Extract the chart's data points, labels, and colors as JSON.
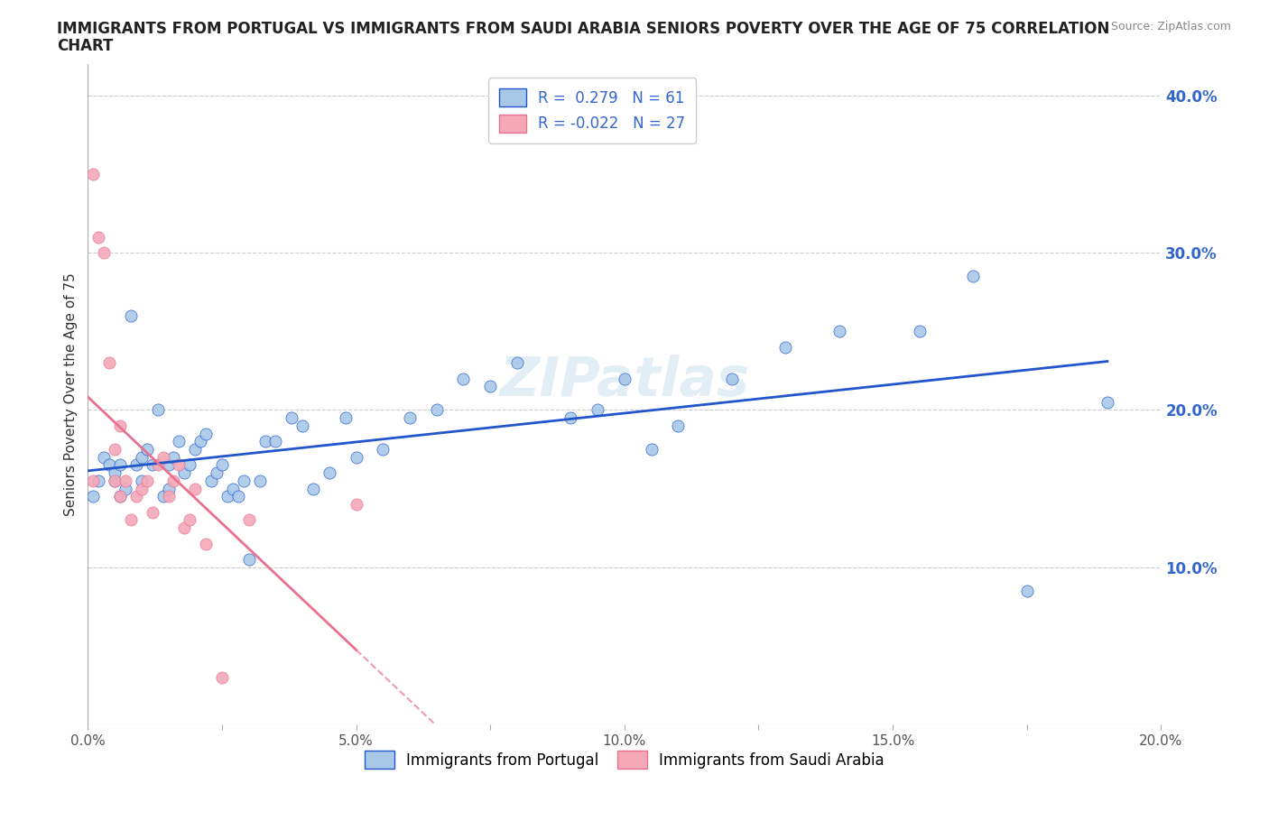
{
  "title_line1": "IMMIGRANTS FROM PORTUGAL VS IMMIGRANTS FROM SAUDI ARABIA SENIORS POVERTY OVER THE AGE OF 75 CORRELATION",
  "title_line2": "CHART",
  "source_text": "Source: ZipAtlas.com",
  "ylabel": "Seniors Poverty Over the Age of 75",
  "xlim": [
    0.0,
    0.2
  ],
  "ylim": [
    0.0,
    0.42
  ],
  "xtick_labels": [
    "0.0%",
    "",
    "5.0%",
    "",
    "10.0%",
    "",
    "15.0%",
    "",
    "20.0%"
  ],
  "xtick_vals": [
    0.0,
    0.025,
    0.05,
    0.075,
    0.1,
    0.125,
    0.15,
    0.175,
    0.2
  ],
  "ytick_labels": [
    "10.0%",
    "20.0%",
    "30.0%",
    "40.0%"
  ],
  "ytick_vals": [
    0.1,
    0.2,
    0.3,
    0.4
  ],
  "r_portugal": 0.279,
  "n_portugal": 61,
  "r_saudi": -0.022,
  "n_saudi": 27,
  "color_portugal": "#a8c8e8",
  "color_saudi": "#f4a8b8",
  "trendline_portugal_color": "#2255cc",
  "trendline_saudi_color": "#e87090",
  "watermark": "ZIPatlas",
  "portugal_x": [
    0.001,
    0.002,
    0.003,
    0.004,
    0.005,
    0.005,
    0.006,
    0.006,
    0.007,
    0.008,
    0.009,
    0.01,
    0.01,
    0.011,
    0.012,
    0.013,
    0.014,
    0.015,
    0.015,
    0.016,
    0.017,
    0.018,
    0.019,
    0.02,
    0.021,
    0.022,
    0.023,
    0.024,
    0.025,
    0.026,
    0.027,
    0.028,
    0.029,
    0.03,
    0.032,
    0.033,
    0.035,
    0.038,
    0.04,
    0.042,
    0.045,
    0.048,
    0.05,
    0.055,
    0.06,
    0.065,
    0.07,
    0.075,
    0.08,
    0.09,
    0.095,
    0.1,
    0.105,
    0.11,
    0.12,
    0.13,
    0.14,
    0.155,
    0.165,
    0.175,
    0.19
  ],
  "portugal_y": [
    0.145,
    0.155,
    0.17,
    0.165,
    0.155,
    0.16,
    0.165,
    0.145,
    0.15,
    0.26,
    0.165,
    0.17,
    0.155,
    0.175,
    0.165,
    0.2,
    0.145,
    0.15,
    0.165,
    0.17,
    0.18,
    0.16,
    0.165,
    0.175,
    0.18,
    0.185,
    0.155,
    0.16,
    0.165,
    0.145,
    0.15,
    0.145,
    0.155,
    0.105,
    0.155,
    0.18,
    0.18,
    0.195,
    0.19,
    0.15,
    0.16,
    0.195,
    0.17,
    0.175,
    0.195,
    0.2,
    0.22,
    0.215,
    0.23,
    0.195,
    0.2,
    0.22,
    0.175,
    0.19,
    0.22,
    0.24,
    0.25,
    0.25,
    0.285,
    0.085,
    0.205
  ],
  "saudi_x": [
    0.001,
    0.001,
    0.002,
    0.003,
    0.004,
    0.005,
    0.005,
    0.006,
    0.006,
    0.007,
    0.008,
    0.009,
    0.01,
    0.011,
    0.012,
    0.013,
    0.014,
    0.015,
    0.016,
    0.017,
    0.018,
    0.019,
    0.02,
    0.022,
    0.025,
    0.03,
    0.05
  ],
  "saudi_y": [
    0.155,
    0.35,
    0.31,
    0.3,
    0.23,
    0.175,
    0.155,
    0.19,
    0.145,
    0.155,
    0.13,
    0.145,
    0.15,
    0.155,
    0.135,
    0.165,
    0.17,
    0.145,
    0.155,
    0.165,
    0.125,
    0.13,
    0.15,
    0.115,
    0.03,
    0.13,
    0.14
  ]
}
